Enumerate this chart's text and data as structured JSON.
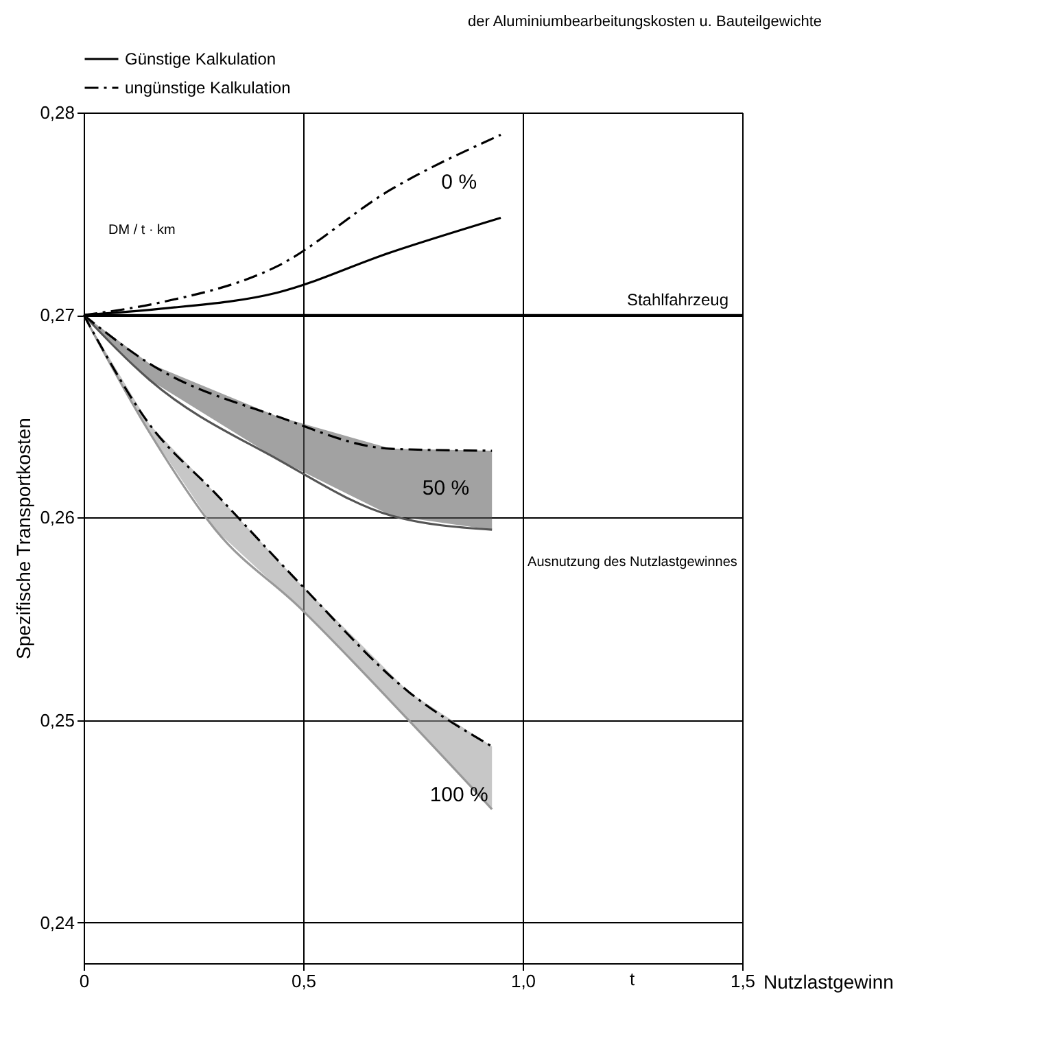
{
  "chart_data": {
    "type": "line",
    "xlabel": "Nutzlastgewinn",
    "ylabel": "Spezifische Transportkosten",
    "xlim": [
      0,
      1.5
    ],
    "ylim": [
      0.238,
      0.28
    ],
    "xticks": [
      0,
      {
        "value": 0.5,
        "label": "0,5"
      },
      {
        "value": 1.0,
        "label": "1,0"
      },
      {
        "value": 1.5,
        "label": "1,5"
      }
    ],
    "yticks": [
      {
        "value": 0.24,
        "label": "0,24"
      },
      {
        "value": 0.25,
        "label": "0,25"
      },
      {
        "value": 0.26,
        "label": "0,26"
      },
      {
        "value": 0.27,
        "label": "0,27"
      },
      {
        "value": 0.28,
        "label": "0,28"
      }
    ],
    "grid": true,
    "legend": "top",
    "series": [
      {
        "name": "Günstige Kalkulation",
        "color": "#000000",
        "line_style": "solid",
        "x": [
          0,
          0.17,
          0.44,
          0.7,
          0.95
        ],
        "values": [
          0.27,
          0.2703,
          0.2711,
          0.2731,
          0.2748
        ]
      },
      {
        "name": "ungünstige Kalkulation",
        "color": "#000000",
        "line_style": "dashed",
        "x": [
          0,
          0.17,
          0.44,
          0.7,
          0.95
        ],
        "values": [
          0.27,
          0.2706,
          0.2724,
          0.2762,
          0.2789
        ]
      },
      {
        "color": "#555555",
        "line_style": "solid",
        "x": [
          0,
          0.15,
          0.44,
          0.7,
          0.93
        ],
        "values": [
          0.27,
          0.2668,
          0.2629,
          0.2601,
          0.2594
        ],
        "lower": [
          0.27,
          0.2668,
          0.2629,
          0.2601,
          0.2594
        ],
        "upper": [
          0.27,
          0.2676,
          0.265,
          0.2634,
          0.2633
        ]
      },
      {
        "color": "#000000",
        "line_style": "dashed",
        "x": [
          0,
          0.15,
          0.44,
          0.7,
          0.93
        ],
        "values": [
          0.27,
          0.2676,
          0.265,
          0.2634,
          0.2633
        ]
      },
      {
        "color": "#999999",
        "line_style": "solid",
        "x": [
          0,
          0.15,
          0.3,
          0.49,
          0.74,
          0.93
        ],
        "values": [
          0.27,
          0.2642,
          0.2594,
          0.2556,
          0.25,
          0.2456
        ],
        "lower": [
          0.27,
          0.2642,
          0.2594,
          0.2556,
          0.25,
          0.2456
        ],
        "upper": [
          0.27,
          0.2646,
          0.2612,
          0.2568,
          0.2514,
          0.2487
        ]
      },
      {
        "color": "#000000",
        "line_style": "dashed",
        "x": [
          0,
          0.15,
          0.3,
          0.49,
          0.74,
          0.93
        ],
        "values": [
          0.27,
          0.2646,
          0.2612,
          0.2568,
          0.2514,
          0.2487
        ]
      }
    ],
    "ref_lines": [
      {
        "axis": "y",
        "value": 0.27,
        "label": "Stahlfahrzeug",
        "color": "#000000"
      }
    ],
    "annotations": [
      "0 %",
      "50 %",
      "100 %",
      "der Aluminiumbearbeitungskosten u. Bauteilgewichte",
      "Ausnutzung des Nutzlastgewinnes",
      "DM / t · km",
      "t"
    ]
  }
}
